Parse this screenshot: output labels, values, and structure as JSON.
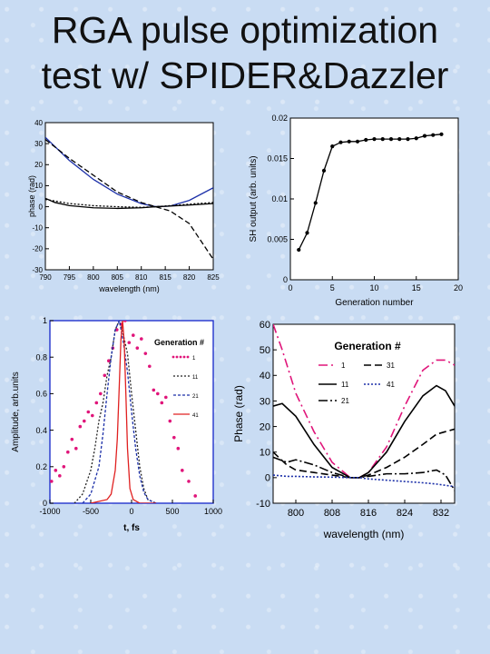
{
  "slide": {
    "title_line1": "RGA pulse optimization",
    "title_line2": "test w/ SPIDER&Dazzler"
  },
  "chart_data": [
    {
      "id": "phase-vs-wavelength-top",
      "type": "line",
      "xlabel": "wavelength (nm)",
      "ylabel": "phase (rad)",
      "xlim": [
        790,
        825
      ],
      "ylim": [
        -30,
        40
      ],
      "xticks": [
        "790",
        "795",
        "800",
        "805",
        "810",
        "815",
        "820",
        "825"
      ],
      "yticks": [
        "40",
        "30",
        "20",
        "10",
        "0",
        "-10",
        "-20",
        "-30"
      ],
      "series": [
        {
          "color": "#1b2fa8",
          "dash": "",
          "x": [
            790,
            795,
            800,
            805,
            810,
            813,
            816,
            820,
            825
          ],
          "y": [
            33,
            22,
            13,
            6,
            1.5,
            0,
            0.3,
            3,
            9
          ]
        },
        {
          "color": "#000000",
          "dash": "6,3",
          "x": [
            790,
            795,
            800,
            805,
            810,
            813,
            816,
            820,
            825
          ],
          "y": [
            32,
            23,
            15,
            7,
            2,
            0,
            -2,
            -8,
            -25
          ]
        },
        {
          "color": "#000000",
          "dash": "",
          "x": [
            790,
            792,
            795,
            800,
            805,
            810,
            813,
            816,
            820,
            825
          ],
          "y": [
            4,
            2,
            0.5,
            -0.5,
            -0.8,
            -0.5,
            0,
            0.3,
            0.8,
            1.5
          ]
        },
        {
          "color": "#000000",
          "dash": "2,2",
          "x": [
            790,
            795,
            800,
            805,
            810,
            813,
            816,
            820,
            825
          ],
          "y": [
            3.5,
            1.5,
            0.5,
            0,
            -0.3,
            0,
            0.5,
            1.2,
            2
          ]
        }
      ]
    },
    {
      "id": "sh-output-vs-generation",
      "type": "line",
      "xlabel": "Generation number",
      "ylabel": "SH output (arb. units)",
      "xlim": [
        0,
        20
      ],
      "ylim": [
        0,
        0.02
      ],
      "xticks": [
        "0",
        "5",
        "10",
        "15",
        "20"
      ],
      "yticks": [
        "0",
        "0.005",
        "0.01",
        "0.015",
        "0.02"
      ],
      "series": [
        {
          "color": "#000000",
          "dash": "",
          "x": [
            1,
            2,
            3,
            4,
            5,
            6,
            7,
            8,
            9,
            10,
            11,
            12,
            13,
            14,
            15,
            16,
            17,
            18
          ],
          "y": [
            0.0037,
            0.0058,
            0.0095,
            0.0135,
            0.0165,
            0.017,
            0.0171,
            0.0171,
            0.0173,
            0.0174,
            0.0174,
            0.0174,
            0.0174,
            0.0174,
            0.0175,
            0.0178,
            0.0179,
            0.018
          ]
        }
      ]
    },
    {
      "id": "amplitude-vs-time",
      "type": "line",
      "xlabel": "t, fs",
      "ylabel": "Amplitude, arb.units",
      "legend_title": "Generation #",
      "xlim": [
        -1000,
        1000
      ],
      "ylim": [
        0,
        1
      ],
      "xticks": [
        "-1000",
        "-500",
        "0",
        "500",
        "1000"
      ],
      "yticks": [
        "0",
        "0.2",
        "0.4",
        "0.6",
        "0.8",
        "1"
      ],
      "series": [
        {
          "name": "1",
          "color": "#e0157a",
          "style": "dots",
          "x": [
            -980,
            -930,
            -880,
            -830,
            -780,
            -730,
            -680,
            -630,
            -580,
            -530,
            -480,
            -430,
            -380,
            -330,
            -280,
            -230,
            -180,
            -130,
            -80,
            -30,
            20,
            70,
            120,
            170,
            220,
            270,
            320,
            370,
            420,
            470,
            520,
            570,
            620,
            700,
            780
          ],
          "y": [
            0.12,
            0.18,
            0.15,
            0.2,
            0.28,
            0.35,
            0.3,
            0.42,
            0.45,
            0.5,
            0.48,
            0.55,
            0.6,
            0.7,
            0.78,
            0.85,
            0.95,
            0.98,
            1.0,
            0.88,
            0.92,
            0.85,
            0.9,
            0.82,
            0.75,
            0.62,
            0.6,
            0.55,
            0.58,
            0.45,
            0.36,
            0.3,
            0.18,
            0.12,
            0.04
          ]
        },
        {
          "name": "11",
          "color": "#222222",
          "dash": "2,2",
          "x": [
            -700,
            -600,
            -500,
            -450,
            -400,
            -350,
            -300,
            -250,
            -200,
            -150,
            -100,
            -50,
            0,
            50,
            100,
            150,
            200,
            300
          ],
          "y": [
            0.0,
            0.05,
            0.18,
            0.3,
            0.45,
            0.55,
            0.7,
            0.8,
            0.95,
            1.0,
            0.92,
            0.82,
            0.6,
            0.4,
            0.2,
            0.08,
            0.02,
            0.0
          ]
        },
        {
          "name": "21",
          "color": "#1b2fa8",
          "dash": "3,2",
          "x": [
            -600,
            -500,
            -400,
            -350,
            -300,
            -250,
            -200,
            -150,
            -100,
            -50,
            0,
            50,
            100,
            150,
            200,
            300
          ],
          "y": [
            0.0,
            0.05,
            0.2,
            0.38,
            0.6,
            0.8,
            0.95,
            1.0,
            0.88,
            0.72,
            0.5,
            0.3,
            0.15,
            0.06,
            0.02,
            0.0
          ]
        },
        {
          "name": "41",
          "color": "#e02020",
          "dash": "",
          "x": [
            -500,
            -300,
            -250,
            -200,
            -175,
            -150,
            -130,
            -110,
            -90,
            -70,
            -50,
            -20,
            20,
            100,
            300
          ],
          "y": [
            0.0,
            0.02,
            0.05,
            0.18,
            0.35,
            0.65,
            0.9,
            1.0,
            0.88,
            0.6,
            0.3,
            0.08,
            0.02,
            0.0,
            0.0
          ]
        }
      ]
    },
    {
      "id": "phase-vs-wavelength-bottom",
      "type": "line",
      "xlabel": "wavelength (nm)",
      "ylabel": "Phase (rad)",
      "legend_title": "Generation #",
      "xlim": [
        795,
        835
      ],
      "ylim": [
        -10,
        60
      ],
      "xticks": [
        "800",
        "808",
        "816",
        "824",
        "832"
      ],
      "yticks": [
        "-10",
        "0",
        "10",
        "20",
        "30",
        "40",
        "50",
        "60"
      ],
      "series": [
        {
          "name": "1",
          "color": "#e0157a",
          "dash": "10,4,2,4",
          "x": [
            795,
            797,
            800,
            804,
            808,
            812,
            814,
            816,
            820,
            824,
            828,
            831,
            833,
            835
          ],
          "y": [
            60,
            50,
            33,
            18,
            6,
            0,
            0,
            2,
            12,
            28,
            42,
            46,
            46,
            44
          ]
        },
        {
          "name": "11",
          "color": "#000000",
          "dash": "",
          "x": [
            795,
            797,
            800,
            804,
            808,
            812,
            814,
            816,
            820,
            824,
            828,
            831,
            833,
            835
          ],
          "y": [
            28,
            29,
            24,
            13,
            4,
            0,
            0,
            2,
            10,
            22,
            32,
            36,
            34,
            28
          ]
        },
        {
          "name": "21",
          "color": "#000000",
          "dash": "10,3,2,3",
          "x": [
            795,
            798,
            800,
            804,
            808,
            812,
            814,
            816,
            820,
            824,
            828,
            831,
            833,
            835
          ],
          "y": [
            8,
            6,
            7,
            5,
            2,
            0,
            0,
            0.5,
            1.5,
            1.5,
            2,
            3,
            1,
            -5
          ]
        },
        {
          "name": "31",
          "color": "#000000",
          "dash": "8,4",
          "x": [
            795,
            798,
            800,
            804,
            808,
            812,
            814,
            816,
            820,
            824,
            828,
            831,
            833,
            835
          ],
          "y": [
            10,
            5,
            3,
            2,
            1,
            0,
            0,
            1,
            4,
            8,
            13,
            17,
            18,
            19
          ]
        },
        {
          "name": "41",
          "color": "#1b2fa8",
          "dash": "2,2",
          "x": [
            795,
            798,
            800,
            804,
            808,
            812,
            814,
            816,
            820,
            824,
            828,
            831,
            833,
            835
          ],
          "y": [
            1,
            0.5,
            0.5,
            0.3,
            0.2,
            0,
            0,
            -0.5,
            -1,
            -1.5,
            -2,
            -2.5,
            -3,
            -3.5
          ]
        }
      ]
    }
  ]
}
